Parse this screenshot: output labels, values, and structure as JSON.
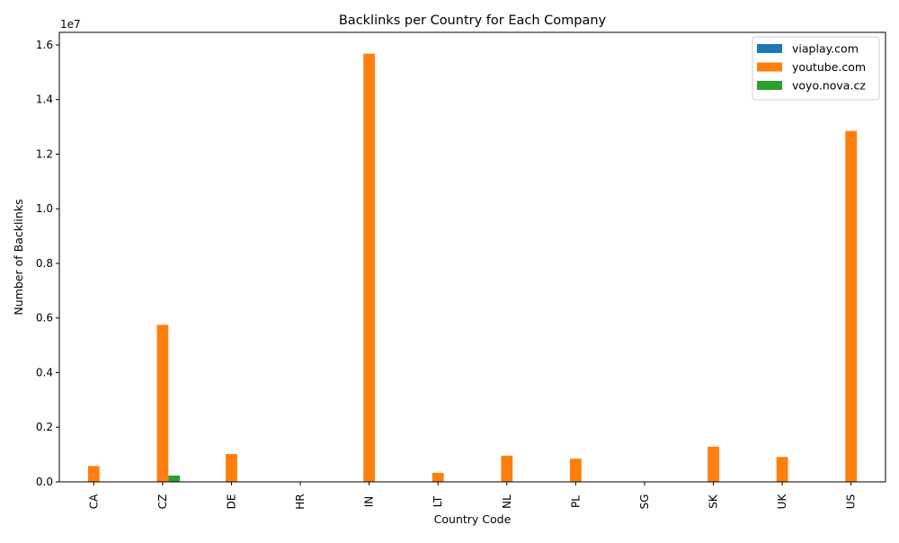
{
  "chart_data": {
    "type": "bar",
    "title": "Backlinks per Country for Each Company",
    "xlabel": "Country Code",
    "ylabel": "Number of Backlinks",
    "offset_text": "1e7",
    "categories": [
      "CA",
      "CZ",
      "DE",
      "HR",
      "IN",
      "LT",
      "NL",
      "PL",
      "SG",
      "SK",
      "UK",
      "US"
    ],
    "series": [
      {
        "name": "viaplay.com",
        "color": "#1f77b4",
        "values": [
          0,
          0,
          0,
          0,
          0,
          0,
          0,
          0,
          0,
          0,
          0,
          0
        ]
      },
      {
        "name": "youtube.com",
        "color": "#ff7f0e",
        "values": [
          580000,
          5750000,
          1020000,
          0,
          15680000,
          330000,
          960000,
          850000,
          0,
          1290000,
          910000,
          12850000
        ]
      },
      {
        "name": "voyo.nova.cz",
        "color": "#2ca02c",
        "values": [
          0,
          230000,
          0,
          0,
          0,
          0,
          0,
          0,
          0,
          0,
          0,
          0
        ]
      }
    ],
    "yticks": [
      0,
      2000000,
      4000000,
      6000000,
      8000000,
      10000000,
      12000000,
      14000000,
      16000000
    ],
    "ytick_labels": [
      "0.0",
      "0.2",
      "0.4",
      "0.6",
      "0.8",
      "1.0",
      "1.2",
      "1.4",
      "1.6"
    ],
    "ylim": [
      0,
      16460000
    ],
    "legend_position": "top-right",
    "grid": false
  }
}
